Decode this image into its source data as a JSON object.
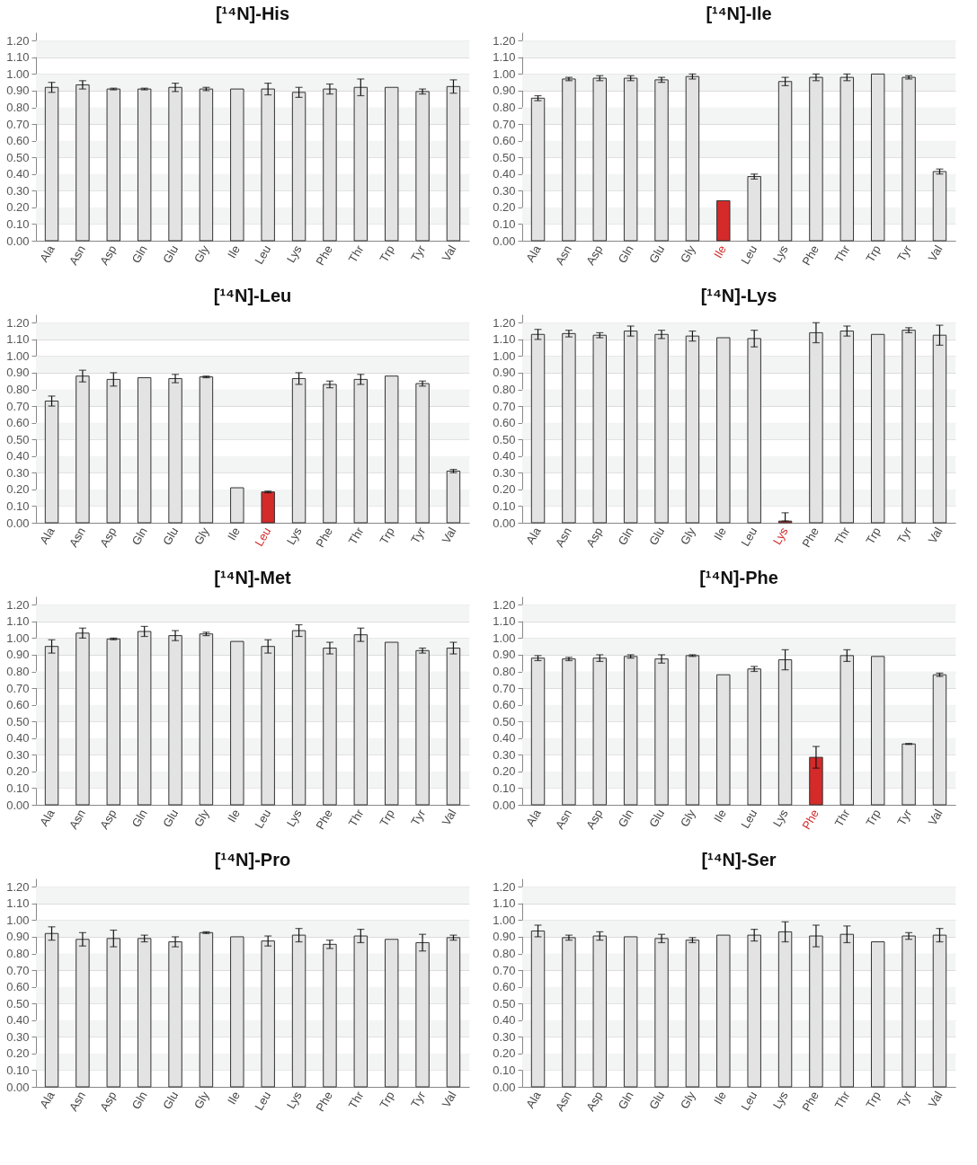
{
  "chart_data": [
    {
      "type": "bar",
      "title": "[¹⁴N]-His",
      "categories": [
        "Ala",
        "Asn",
        "Asp",
        "Gln",
        "Glu",
        "Gly",
        "Ile",
        "Leu",
        "Lys",
        "Phe",
        "Thr",
        "Trp",
        "Tyr",
        "Val"
      ],
      "values": [
        0.92,
        0.935,
        0.91,
        0.91,
        0.92,
        0.91,
        0.91,
        0.91,
        0.89,
        0.91,
        0.92,
        0.92,
        0.895,
        0.925
      ],
      "errors": [
        0.03,
        0.025,
        0.005,
        0.005,
        0.025,
        0.01,
        null,
        0.035,
        0.03,
        0.03,
        0.05,
        null,
        0.015,
        0.04
      ],
      "colors": [
        "#e3e3e3",
        "#e3e3e3",
        "#e3e3e3",
        "#e3e3e3",
        "#e3e3e3",
        "#e3e3e3",
        "#e3e3e3",
        "#e3e3e3",
        "#e3e3e3",
        "#e3e3e3",
        "#e3e3e3",
        "#e3e3e3",
        "#e3e3e3",
        "#e3e3e3"
      ],
      "ylim": [
        0,
        1.25
      ],
      "yticks": [
        {
          "value": 0,
          "label": "0.00"
        },
        {
          "value": 0.1,
          "label": "0.10"
        },
        {
          "value": 0.2,
          "label": "0.20"
        },
        {
          "value": 0.3,
          "label": "0.30"
        },
        {
          "value": 0.4,
          "label": "0.40"
        },
        {
          "value": 0.5,
          "label": "0.50"
        },
        {
          "value": 0.6,
          "label": "0.60"
        },
        {
          "value": 0.7,
          "label": "0.70"
        },
        {
          "value": 0.8,
          "label": "0.80"
        },
        {
          "value": 0.9,
          "label": "0.90"
        },
        {
          "value": 1,
          "label": "1.00"
        },
        {
          "value": 1.1,
          "label": "1.10"
        },
        {
          "value": 1.2,
          "label": "1.20"
        }
      ],
      "grid": "y",
      "bands": [
        {
          "axis": "y",
          "from": 0.1,
          "to": 0.2,
          "color": "#f3f4f4"
        },
        {
          "axis": "y",
          "from": 0.3,
          "to": 0.4,
          "color": "#f3f4f4"
        },
        {
          "axis": "y",
          "from": 0.5,
          "to": 0.6,
          "color": "#f3f4f4"
        },
        {
          "axis": "y",
          "from": 0.7,
          "to": 0.8,
          "color": "#f3f4f4"
        },
        {
          "axis": "y",
          "from": 0.9,
          "to": 1,
          "color": "#f3f4f4"
        },
        {
          "axis": "y",
          "from": 1.1,
          "to": 1.2,
          "color": "#f3f4f4"
        }
      ]
    },
    {
      "type": "bar",
      "title": "[¹⁴N]-Ile",
      "categories": [
        "Ala",
        "Asn",
        "Asp",
        "Gln",
        "Glu",
        "Gly",
        "Ile",
        "Leu",
        "Lys",
        "Phe",
        "Thr",
        "Trp",
        "Tyr",
        "Val"
      ],
      "values": [
        0.855,
        0.97,
        0.975,
        0.975,
        0.965,
        0.985,
        0.24,
        0.385,
        0.955,
        0.98,
        0.98,
        1.0,
        0.98,
        0.415
      ],
      "errors": [
        0.015,
        0.01,
        0.015,
        0.015,
        0.015,
        0.015,
        null,
        0.015,
        0.025,
        0.02,
        0.02,
        null,
        0.01,
        0.015
      ],
      "colors": [
        "#e3e3e3",
        "#e3e3e3",
        "#e3e3e3",
        "#e3e3e3",
        "#e3e3e3",
        "#e3e3e3",
        "#d42a2a",
        "#e3e3e3",
        "#e3e3e3",
        "#e3e3e3",
        "#e3e3e3",
        "#e3e3e3",
        "#e3e3e3",
        "#e3e3e3"
      ],
      "ylim": [
        0,
        1.25
      ],
      "yticks": [
        {
          "value": 0,
          "label": "0.00"
        },
        {
          "value": 0.1,
          "label": "0.10"
        },
        {
          "value": 0.2,
          "label": "0.20"
        },
        {
          "value": 0.3,
          "label": "0.30"
        },
        {
          "value": 0.4,
          "label": "0.40"
        },
        {
          "value": 0.5,
          "label": "0.50"
        },
        {
          "value": 0.6,
          "label": "0.60"
        },
        {
          "value": 0.7,
          "label": "0.70"
        },
        {
          "value": 0.8,
          "label": "0.80"
        },
        {
          "value": 0.9,
          "label": "0.90"
        },
        {
          "value": 1,
          "label": "1.00"
        },
        {
          "value": 1.1,
          "label": "1.10"
        },
        {
          "value": 1.2,
          "label": "1.20"
        }
      ],
      "grid": "y",
      "bands": [
        {
          "axis": "y",
          "from": 0.1,
          "to": 0.2,
          "color": "#f3f4f4"
        },
        {
          "axis": "y",
          "from": 0.3,
          "to": 0.4,
          "color": "#f3f4f4"
        },
        {
          "axis": "y",
          "from": 0.5,
          "to": 0.6,
          "color": "#f3f4f4"
        },
        {
          "axis": "y",
          "from": 0.7,
          "to": 0.8,
          "color": "#f3f4f4"
        },
        {
          "axis": "y",
          "from": 0.9,
          "to": 1,
          "color": "#f3f4f4"
        },
        {
          "axis": "y",
          "from": 1.1,
          "to": 1.2,
          "color": "#f3f4f4"
        }
      ]
    },
    {
      "type": "bar",
      "title": "[¹⁴N]-Leu",
      "categories": [
        "Ala",
        "Asn",
        "Asp",
        "Gln",
        "Glu",
        "Gly",
        "Ile",
        "Leu",
        "Lys",
        "Phe",
        "Thr",
        "Trp",
        "Tyr",
        "Val"
      ],
      "values": [
        0.73,
        0.88,
        0.86,
        0.87,
        0.865,
        0.875,
        0.21,
        0.185,
        0.865,
        0.83,
        0.86,
        0.88,
        0.835,
        0.31
      ],
      "errors": [
        0.03,
        0.035,
        0.04,
        null,
        0.025,
        0.005,
        null,
        0.005,
        0.035,
        0.02,
        0.03,
        null,
        0.015,
        0.01
      ],
      "colors": [
        "#e3e3e3",
        "#e3e3e3",
        "#e3e3e3",
        "#e3e3e3",
        "#e3e3e3",
        "#e3e3e3",
        "#e3e3e3",
        "#d42a2a",
        "#e3e3e3",
        "#e3e3e3",
        "#e3e3e3",
        "#e3e3e3",
        "#e3e3e3",
        "#e3e3e3"
      ],
      "ylim": [
        0,
        1.25
      ],
      "yticks": [
        {
          "value": 0,
          "label": "0.00"
        },
        {
          "value": 0.1,
          "label": "0.10"
        },
        {
          "value": 0.2,
          "label": "0.20"
        },
        {
          "value": 0.3,
          "label": "0.30"
        },
        {
          "value": 0.4,
          "label": "0.40"
        },
        {
          "value": 0.5,
          "label": "0.50"
        },
        {
          "value": 0.6,
          "label": "0.60"
        },
        {
          "value": 0.7,
          "label": "0.70"
        },
        {
          "value": 0.8,
          "label": "0.80"
        },
        {
          "value": 0.9,
          "label": "0.90"
        },
        {
          "value": 1,
          "label": "1.00"
        },
        {
          "value": 1.1,
          "label": "1.10"
        },
        {
          "value": 1.2,
          "label": "1.20"
        }
      ],
      "grid": "y",
      "bands": [
        {
          "axis": "y",
          "from": 0.1,
          "to": 0.2,
          "color": "#f3f4f4"
        },
        {
          "axis": "y",
          "from": 0.3,
          "to": 0.4,
          "color": "#f3f4f4"
        },
        {
          "axis": "y",
          "from": 0.5,
          "to": 0.6,
          "color": "#f3f4f4"
        },
        {
          "axis": "y",
          "from": 0.7,
          "to": 0.8,
          "color": "#f3f4f4"
        },
        {
          "axis": "y",
          "from": 0.9,
          "to": 1,
          "color": "#f3f4f4"
        },
        {
          "axis": "y",
          "from": 1.1,
          "to": 1.2,
          "color": "#f3f4f4"
        }
      ]
    },
    {
      "type": "bar",
      "title": "[¹⁴N]-Lys",
      "categories": [
        "Ala",
        "Asn",
        "Asp",
        "Gln",
        "Glu",
        "Gly",
        "Ile",
        "Leu",
        "Lys",
        "Phe",
        "Thr",
        "Trp",
        "Tyr",
        "Val"
      ],
      "values": [
        1.13,
        1.135,
        1.125,
        1.15,
        1.13,
        1.12,
        1.11,
        1.105,
        0.01,
        1.14,
        1.15,
        1.13,
        1.155,
        1.125
      ],
      "errors": [
        0.03,
        0.02,
        0.015,
        0.03,
        0.025,
        0.03,
        null,
        0.05,
        [
          0.01,
          0.06
        ],
        0.06,
        0.03,
        null,
        0.015,
        0.06
      ],
      "colors": [
        "#e3e3e3",
        "#e3e3e3",
        "#e3e3e3",
        "#e3e3e3",
        "#e3e3e3",
        "#e3e3e3",
        "#e3e3e3",
        "#e3e3e3",
        "#d42a2a",
        "#e3e3e3",
        "#e3e3e3",
        "#e3e3e3",
        "#e3e3e3",
        "#e3e3e3"
      ],
      "ylim": [
        0,
        1.25
      ],
      "yticks": [
        {
          "value": 0,
          "label": "0.00"
        },
        {
          "value": 0.1,
          "label": "0.10"
        },
        {
          "value": 0.2,
          "label": "0.20"
        },
        {
          "value": 0.3,
          "label": "0.30"
        },
        {
          "value": 0.4,
          "label": "0.40"
        },
        {
          "value": 0.5,
          "label": "0.50"
        },
        {
          "value": 0.6,
          "label": "0.60"
        },
        {
          "value": 0.7,
          "label": "0.70"
        },
        {
          "value": 0.8,
          "label": "0.80"
        },
        {
          "value": 0.9,
          "label": "0.90"
        },
        {
          "value": 1,
          "label": "1.00"
        },
        {
          "value": 1.1,
          "label": "1.10"
        },
        {
          "value": 1.2,
          "label": "1.20"
        }
      ],
      "grid": "y",
      "bands": [
        {
          "axis": "y",
          "from": 0.1,
          "to": 0.2,
          "color": "#f3f4f4"
        },
        {
          "axis": "y",
          "from": 0.3,
          "to": 0.4,
          "color": "#f3f4f4"
        },
        {
          "axis": "y",
          "from": 0.5,
          "to": 0.6,
          "color": "#f3f4f4"
        },
        {
          "axis": "y",
          "from": 0.7,
          "to": 0.8,
          "color": "#f3f4f4"
        },
        {
          "axis": "y",
          "from": 0.9,
          "to": 1,
          "color": "#f3f4f4"
        },
        {
          "axis": "y",
          "from": 1.1,
          "to": 1.2,
          "color": "#f3f4f4"
        }
      ]
    },
    {
      "type": "bar",
      "title": "[¹⁴N]-Met",
      "categories": [
        "Ala",
        "Asn",
        "Asp",
        "Gln",
        "Glu",
        "Gly",
        "Ile",
        "Leu",
        "Lys",
        "Phe",
        "Thr",
        "Trp",
        "Tyr",
        "Val"
      ],
      "values": [
        0.95,
        1.03,
        0.995,
        1.04,
        1.015,
        1.025,
        0.98,
        0.95,
        1.045,
        0.94,
        1.02,
        0.975,
        0.925,
        0.94
      ],
      "errors": [
        0.04,
        0.03,
        0.005,
        0.03,
        0.03,
        0.01,
        null,
        0.04,
        0.035,
        0.035,
        0.04,
        null,
        0.015,
        0.035
      ],
      "colors": [
        "#e3e3e3",
        "#e3e3e3",
        "#e3e3e3",
        "#e3e3e3",
        "#e3e3e3",
        "#e3e3e3",
        "#e3e3e3",
        "#e3e3e3",
        "#e3e3e3",
        "#e3e3e3",
        "#e3e3e3",
        "#e3e3e3",
        "#e3e3e3",
        "#e3e3e3"
      ],
      "ylim": [
        0,
        1.25
      ],
      "yticks": [
        {
          "value": 0,
          "label": "0.00"
        },
        {
          "value": 0.1,
          "label": "0.10"
        },
        {
          "value": 0.2,
          "label": "0.20"
        },
        {
          "value": 0.3,
          "label": "0.30"
        },
        {
          "value": 0.4,
          "label": "0.40"
        },
        {
          "value": 0.5,
          "label": "0.50"
        },
        {
          "value": 0.6,
          "label": "0.60"
        },
        {
          "value": 0.7,
          "label": "0.70"
        },
        {
          "value": 0.8,
          "label": "0.80"
        },
        {
          "value": 0.9,
          "label": "0.90"
        },
        {
          "value": 1,
          "label": "1.00"
        },
        {
          "value": 1.1,
          "label": "1.10"
        },
        {
          "value": 1.2,
          "label": "1.20"
        }
      ],
      "grid": "y",
      "bands": [
        {
          "axis": "y",
          "from": 0.1,
          "to": 0.2,
          "color": "#f3f4f4"
        },
        {
          "axis": "y",
          "from": 0.3,
          "to": 0.4,
          "color": "#f3f4f4"
        },
        {
          "axis": "y",
          "from": 0.5,
          "to": 0.6,
          "color": "#f3f4f4"
        },
        {
          "axis": "y",
          "from": 0.7,
          "to": 0.8,
          "color": "#f3f4f4"
        },
        {
          "axis": "y",
          "from": 0.9,
          "to": 1,
          "color": "#f3f4f4"
        },
        {
          "axis": "y",
          "from": 1.1,
          "to": 1.2,
          "color": "#f3f4f4"
        }
      ]
    },
    {
      "type": "bar",
      "title": "[¹⁴N]-Phe",
      "categories": [
        "Ala",
        "Asn",
        "Asp",
        "Gln",
        "Glu",
        "Gly",
        "Ile",
        "Leu",
        "Lys",
        "Phe",
        "Thr",
        "Trp",
        "Tyr",
        "Val"
      ],
      "values": [
        0.88,
        0.875,
        0.88,
        0.89,
        0.875,
        0.895,
        0.78,
        0.815,
        0.87,
        0.285,
        0.895,
        0.89,
        0.365,
        0.78
      ],
      "errors": [
        0.015,
        0.01,
        0.02,
        0.01,
        0.025,
        0.005,
        null,
        0.015,
        0.06,
        0.065,
        0.035,
        null,
        0.003,
        0.01
      ],
      "colors": [
        "#e3e3e3",
        "#e3e3e3",
        "#e3e3e3",
        "#e3e3e3",
        "#e3e3e3",
        "#e3e3e3",
        "#e3e3e3",
        "#e3e3e3",
        "#e3e3e3",
        "#d42a2a",
        "#e3e3e3",
        "#e3e3e3",
        "#e3e3e3",
        "#e3e3e3"
      ],
      "ylim": [
        0,
        1.25
      ],
      "yticks": [
        {
          "value": 0,
          "label": "0.00"
        },
        {
          "value": 0.1,
          "label": "0.10"
        },
        {
          "value": 0.2,
          "label": "0.20"
        },
        {
          "value": 0.3,
          "label": "0.30"
        },
        {
          "value": 0.4,
          "label": "0.40"
        },
        {
          "value": 0.5,
          "label": "0.50"
        },
        {
          "value": 0.6,
          "label": "0.60"
        },
        {
          "value": 0.7,
          "label": "0.70"
        },
        {
          "value": 0.8,
          "label": "0.80"
        },
        {
          "value": 0.9,
          "label": "0.90"
        },
        {
          "value": 1,
          "label": "1.00"
        },
        {
          "value": 1.1,
          "label": "1.10"
        },
        {
          "value": 1.2,
          "label": "1.20"
        }
      ],
      "grid": "y",
      "bands": [
        {
          "axis": "y",
          "from": 0.1,
          "to": 0.2,
          "color": "#f3f4f4"
        },
        {
          "axis": "y",
          "from": 0.3,
          "to": 0.4,
          "color": "#f3f4f4"
        },
        {
          "axis": "y",
          "from": 0.5,
          "to": 0.6,
          "color": "#f3f4f4"
        },
        {
          "axis": "y",
          "from": 0.7,
          "to": 0.8,
          "color": "#f3f4f4"
        },
        {
          "axis": "y",
          "from": 0.9,
          "to": 1,
          "color": "#f3f4f4"
        },
        {
          "axis": "y",
          "from": 1.1,
          "to": 1.2,
          "color": "#f3f4f4"
        }
      ]
    },
    {
      "type": "bar",
      "title": "[¹⁴N]-Pro",
      "categories": [
        "Ala",
        "Asn",
        "Asp",
        "Gln",
        "Glu",
        "Gly",
        "Ile",
        "Leu",
        "Lys",
        "Phe",
        "Thr",
        "Trp",
        "Tyr",
        "Val"
      ],
      "values": [
        0.92,
        0.885,
        0.89,
        0.89,
        0.87,
        0.925,
        0.9,
        0.875,
        0.91,
        0.855,
        0.905,
        0.885,
        0.865,
        0.895
      ],
      "errors": [
        0.04,
        0.04,
        0.05,
        0.02,
        0.03,
        0.005,
        null,
        0.03,
        0.04,
        0.025,
        0.04,
        null,
        0.05,
        0.015
      ],
      "colors": [
        "#e3e3e3",
        "#e3e3e3",
        "#e3e3e3",
        "#e3e3e3",
        "#e3e3e3",
        "#e3e3e3",
        "#e3e3e3",
        "#e3e3e3",
        "#e3e3e3",
        "#e3e3e3",
        "#e3e3e3",
        "#e3e3e3",
        "#e3e3e3",
        "#e3e3e3"
      ],
      "ylim": [
        0,
        1.25
      ],
      "yticks": [
        {
          "value": 0,
          "label": "0.00"
        },
        {
          "value": 0.1,
          "label": "0.10"
        },
        {
          "value": 0.2,
          "label": "0.20"
        },
        {
          "value": 0.3,
          "label": "0.30"
        },
        {
          "value": 0.4,
          "label": "0.40"
        },
        {
          "value": 0.5,
          "label": "0.50"
        },
        {
          "value": 0.6,
          "label": "0.60"
        },
        {
          "value": 0.7,
          "label": "0.70"
        },
        {
          "value": 0.8,
          "label": "0.80"
        },
        {
          "value": 0.9,
          "label": "0.90"
        },
        {
          "value": 1,
          "label": "1.00"
        },
        {
          "value": 1.1,
          "label": "1.10"
        },
        {
          "value": 1.2,
          "label": "1.20"
        }
      ],
      "grid": "y",
      "bands": [
        {
          "axis": "y",
          "from": 0.1,
          "to": 0.2,
          "color": "#f3f4f4"
        },
        {
          "axis": "y",
          "from": 0.3,
          "to": 0.4,
          "color": "#f3f4f4"
        },
        {
          "axis": "y",
          "from": 0.5,
          "to": 0.6,
          "color": "#f3f4f4"
        },
        {
          "axis": "y",
          "from": 0.7,
          "to": 0.8,
          "color": "#f3f4f4"
        },
        {
          "axis": "y",
          "from": 0.9,
          "to": 1,
          "color": "#f3f4f4"
        },
        {
          "axis": "y",
          "from": 1.1,
          "to": 1.2,
          "color": "#f3f4f4"
        }
      ]
    },
    {
      "type": "bar",
      "title": "[¹⁴N]-Ser",
      "categories": [
        "Ala",
        "Asn",
        "Asp",
        "Gln",
        "Glu",
        "Gly",
        "Ile",
        "Leu",
        "Lys",
        "Phe",
        "Thr",
        "Trp",
        "Tyr",
        "Val"
      ],
      "values": [
        0.935,
        0.895,
        0.905,
        0.9,
        0.89,
        0.88,
        0.91,
        0.91,
        0.93,
        0.905,
        0.915,
        0.87,
        0.905,
        0.91
      ],
      "errors": [
        0.035,
        0.015,
        0.025,
        null,
        0.025,
        0.015,
        null,
        0.035,
        0.06,
        0.065,
        0.05,
        null,
        0.02,
        0.04
      ],
      "colors": [
        "#e3e3e3",
        "#e3e3e3",
        "#e3e3e3",
        "#e3e3e3",
        "#e3e3e3",
        "#e3e3e3",
        "#e3e3e3",
        "#e3e3e3",
        "#e3e3e3",
        "#e3e3e3",
        "#e3e3e3",
        "#e3e3e3",
        "#e3e3e3",
        "#e3e3e3"
      ],
      "ylim": [
        0,
        1.25
      ],
      "yticks": [
        {
          "value": 0,
          "label": "0.00"
        },
        {
          "value": 0.1,
          "label": "0.10"
        },
        {
          "value": 0.2,
          "label": "0.20"
        },
        {
          "value": 0.3,
          "label": "0.30"
        },
        {
          "value": 0.4,
          "label": "0.40"
        },
        {
          "value": 0.5,
          "label": "0.50"
        },
        {
          "value": 0.6,
          "label": "0.60"
        },
        {
          "value": 0.7,
          "label": "0.70"
        },
        {
          "value": 0.8,
          "label": "0.80"
        },
        {
          "value": 0.9,
          "label": "0.90"
        },
        {
          "value": 1,
          "label": "1.00"
        },
        {
          "value": 1.1,
          "label": "1.10"
        },
        {
          "value": 1.2,
          "label": "1.20"
        }
      ],
      "grid": "y",
      "bands": [
        {
          "axis": "y",
          "from": 0.1,
          "to": 0.2,
          "color": "#f3f4f4"
        },
        {
          "axis": "y",
          "from": 0.3,
          "to": 0.4,
          "color": "#f3f4f4"
        },
        {
          "axis": "y",
          "from": 0.5,
          "to": 0.6,
          "color": "#f3f4f4"
        },
        {
          "axis": "y",
          "from": 0.7,
          "to": 0.8,
          "color": "#f3f4f4"
        },
        {
          "axis": "y",
          "from": 0.9,
          "to": 1,
          "color": "#f3f4f4"
        },
        {
          "axis": "y",
          "from": 1.1,
          "to": 1.2,
          "color": "#f3f4f4"
        }
      ]
    }
  ]
}
